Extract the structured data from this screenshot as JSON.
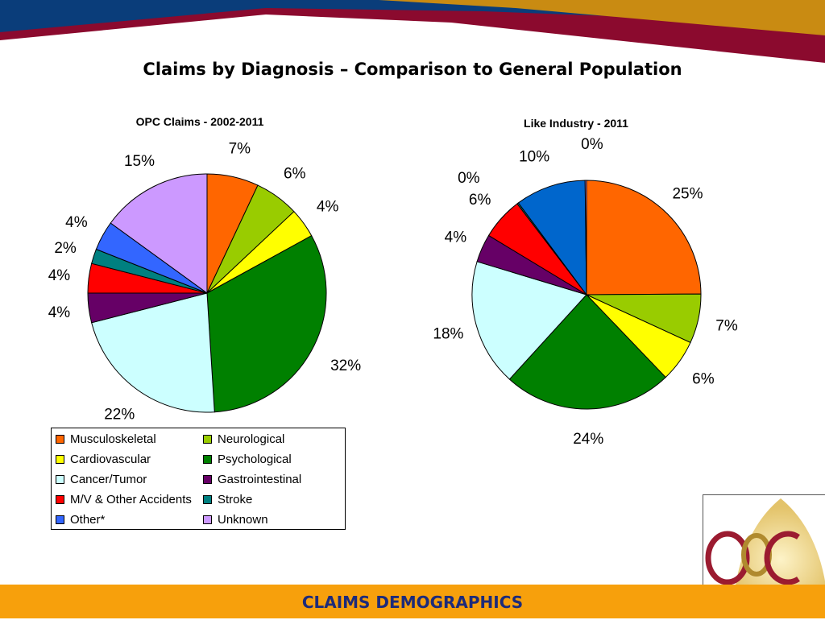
{
  "slide": {
    "title": "Claims by Diagnosis – Comparison to General Population",
    "footer": "CLAIMS DEMOGRAPHICS",
    "logo_text": "OPC"
  },
  "colors": {
    "banner_red": "#8b0a2e",
    "banner_blue": "#0a3d7a",
    "banner_gold": "#c98b12",
    "footer_bg": "#f7a00c",
    "footer_text": "#1d2b7a"
  },
  "chart_data": [
    {
      "type": "pie",
      "title": "OPC Claims - 2002-2011",
      "categories": [
        "Musculoskeletal",
        "Neurological",
        "Cardiovascular",
        "Psychological",
        "Cancer/Tumor",
        "Gastrointestinal",
        "M/V & Other Accidents",
        "Stroke",
        "Other*",
        "Unknown"
      ],
      "values": [
        7,
        6,
        4,
        32,
        22,
        4,
        4,
        2,
        4,
        15
      ],
      "labels": [
        "7%",
        "6%",
        "4%",
        "32%",
        "22%",
        "4%",
        "4%",
        "2%",
        "4%",
        "15%"
      ],
      "colors": [
        "#ff6600",
        "#99cc00",
        "#ffff00",
        "#008000",
        "#ccffff",
        "#660066",
        "#ff0000",
        "#008080",
        "#3366ff",
        "#cc99ff"
      ],
      "legend_position": "bottom"
    },
    {
      "type": "pie",
      "title": "Like Industry - 2011",
      "categories": [
        "Musculoskeletal",
        "Neurological",
        "Cardiovascular",
        "Psychological",
        "Cancer/Tumor",
        "Gastrointestinal",
        "M/V & Other Accidents",
        "Stroke",
        "Other*",
        "Unknown"
      ],
      "values": [
        25,
        7,
        6,
        24,
        18,
        4,
        6,
        0.2,
        10,
        0.2
      ],
      "labels": [
        "25%",
        "7%",
        "6%",
        "24%",
        "18%",
        "4%",
        "6%",
        "0%",
        "10%",
        "0%"
      ],
      "colors": [
        "#ff6600",
        "#99cc00",
        "#ffff00",
        "#008000",
        "#ccffff",
        "#660066",
        "#ff0000",
        "#008080",
        "#0066cc",
        "#cc99ff"
      ]
    }
  ],
  "legend": {
    "items": [
      {
        "label": "Musculoskeletal",
        "color": "#ff6600"
      },
      {
        "label": "Neurological",
        "color": "#99cc00"
      },
      {
        "label": "Cardiovascular",
        "color": "#ffff00"
      },
      {
        "label": "Psychological",
        "color": "#008000"
      },
      {
        "label": "Cancer/Tumor",
        "color": "#ccffff"
      },
      {
        "label": "Gastrointestinal",
        "color": "#660066"
      },
      {
        "label": "M/V & Other Accidents",
        "color": "#ff0000"
      },
      {
        "label": "Stroke",
        "color": "#008080"
      },
      {
        "label": "Other*",
        "color": "#3366ff"
      },
      {
        "label": "Unknown",
        "color": "#cc99ff"
      }
    ]
  }
}
